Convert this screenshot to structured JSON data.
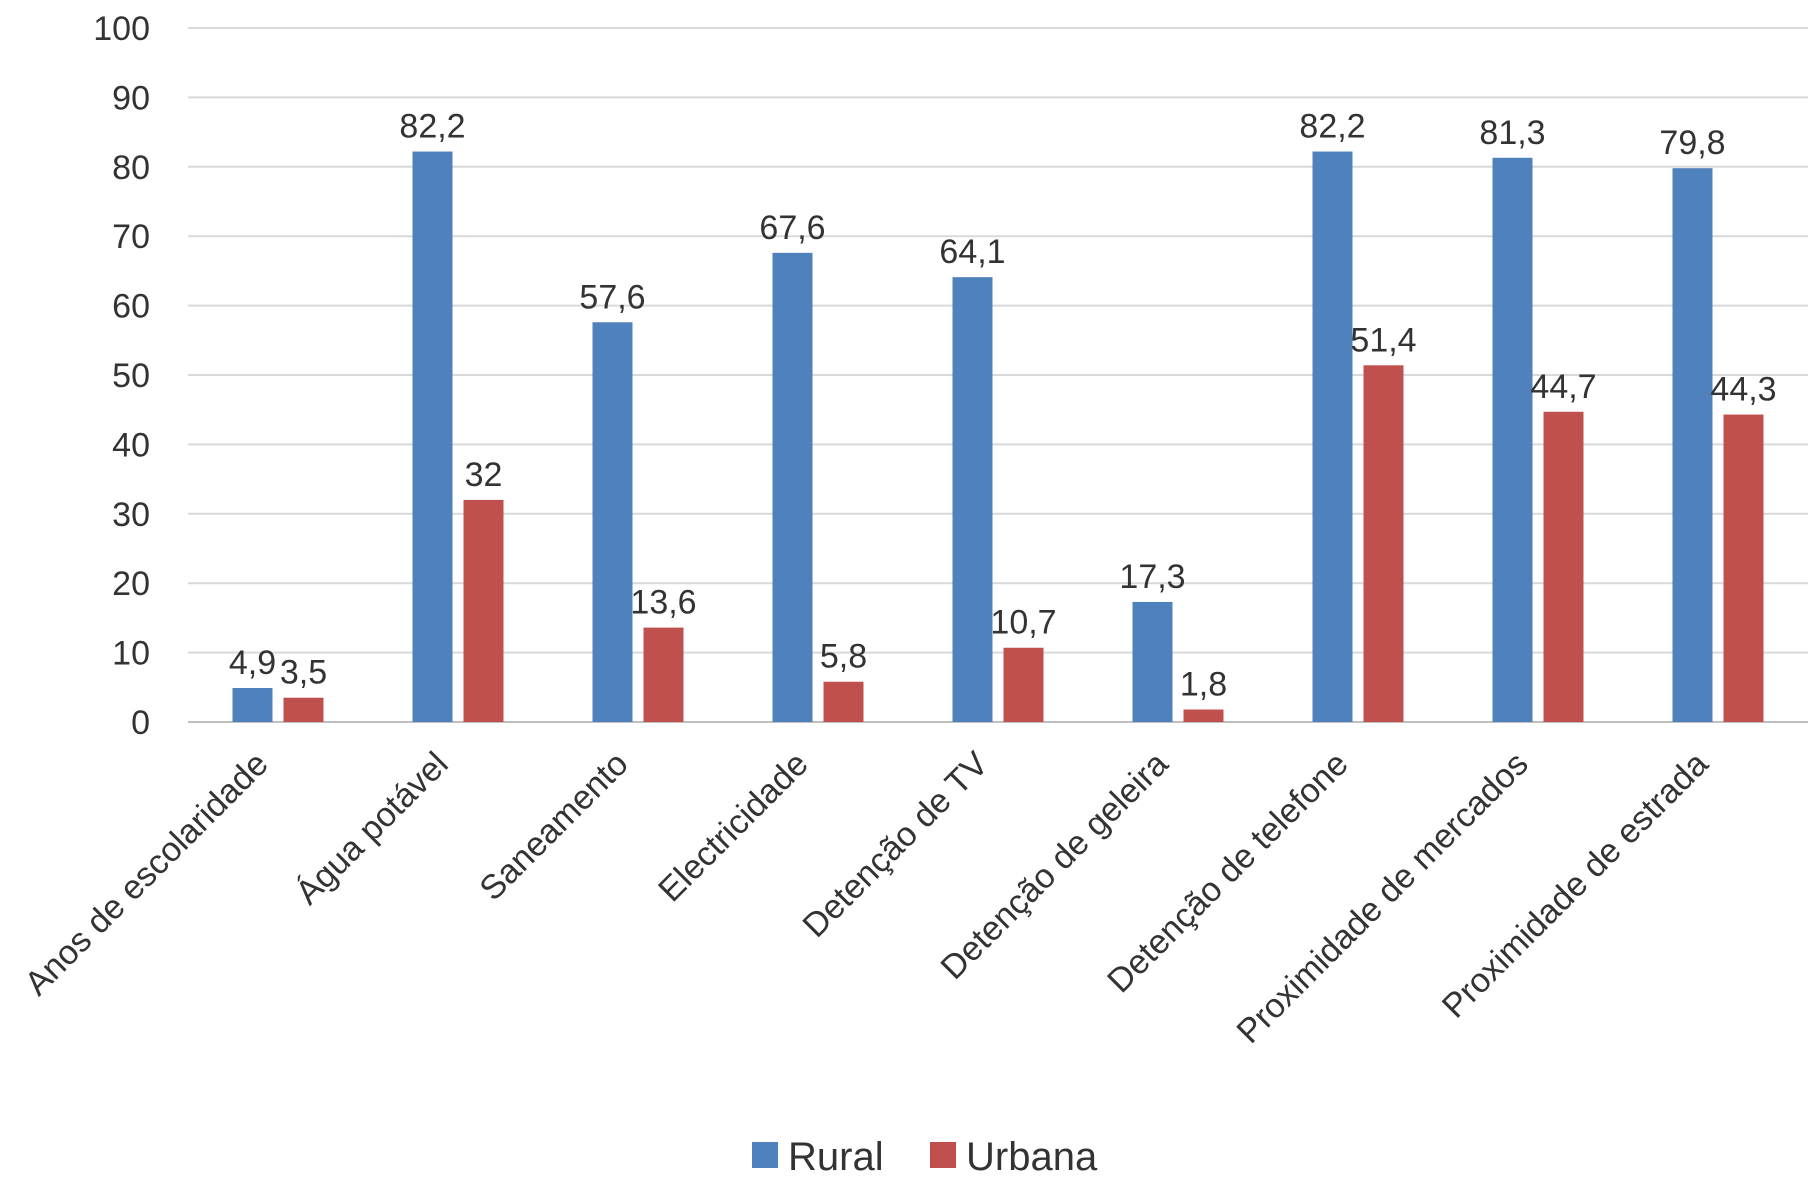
{
  "chart_data": {
    "type": "bar",
    "title": "",
    "xlabel": "",
    "ylabel": "",
    "ylim": [
      0,
      100
    ],
    "yticks": [
      0,
      10,
      20,
      30,
      40,
      50,
      60,
      70,
      80,
      90,
      100
    ],
    "grid": true,
    "legend_position": "bottom",
    "categories": [
      "Anos de escolaridade",
      "Água potável",
      "Saneamento",
      "Electricidade",
      "Detenção de TV",
      "Detenção de geleira",
      "Detenção de telefone",
      "Proximidade de mercados",
      "Proximidade de estrada"
    ],
    "series": [
      {
        "name": "Rural",
        "color": "#4F81BD",
        "values": [
          4.9,
          82.2,
          57.6,
          67.6,
          64.1,
          17.3,
          82.2,
          81.3,
          79.8
        ],
        "labels": [
          "4,9",
          "82,2",
          "57,6",
          "67,6",
          "64,1",
          "17,3",
          "82,2",
          "81,3",
          "79,8"
        ]
      },
      {
        "name": "Urbana",
        "color": "#C0504D",
        "values": [
          3.5,
          32,
          13.6,
          5.8,
          10.7,
          1.8,
          51.4,
          44.7,
          44.3
        ],
        "labels": [
          "3,5",
          "32",
          "13,6",
          "5,8",
          "10,7",
          "1,8",
          "51,4",
          "44,7",
          "44,3"
        ]
      }
    ]
  }
}
